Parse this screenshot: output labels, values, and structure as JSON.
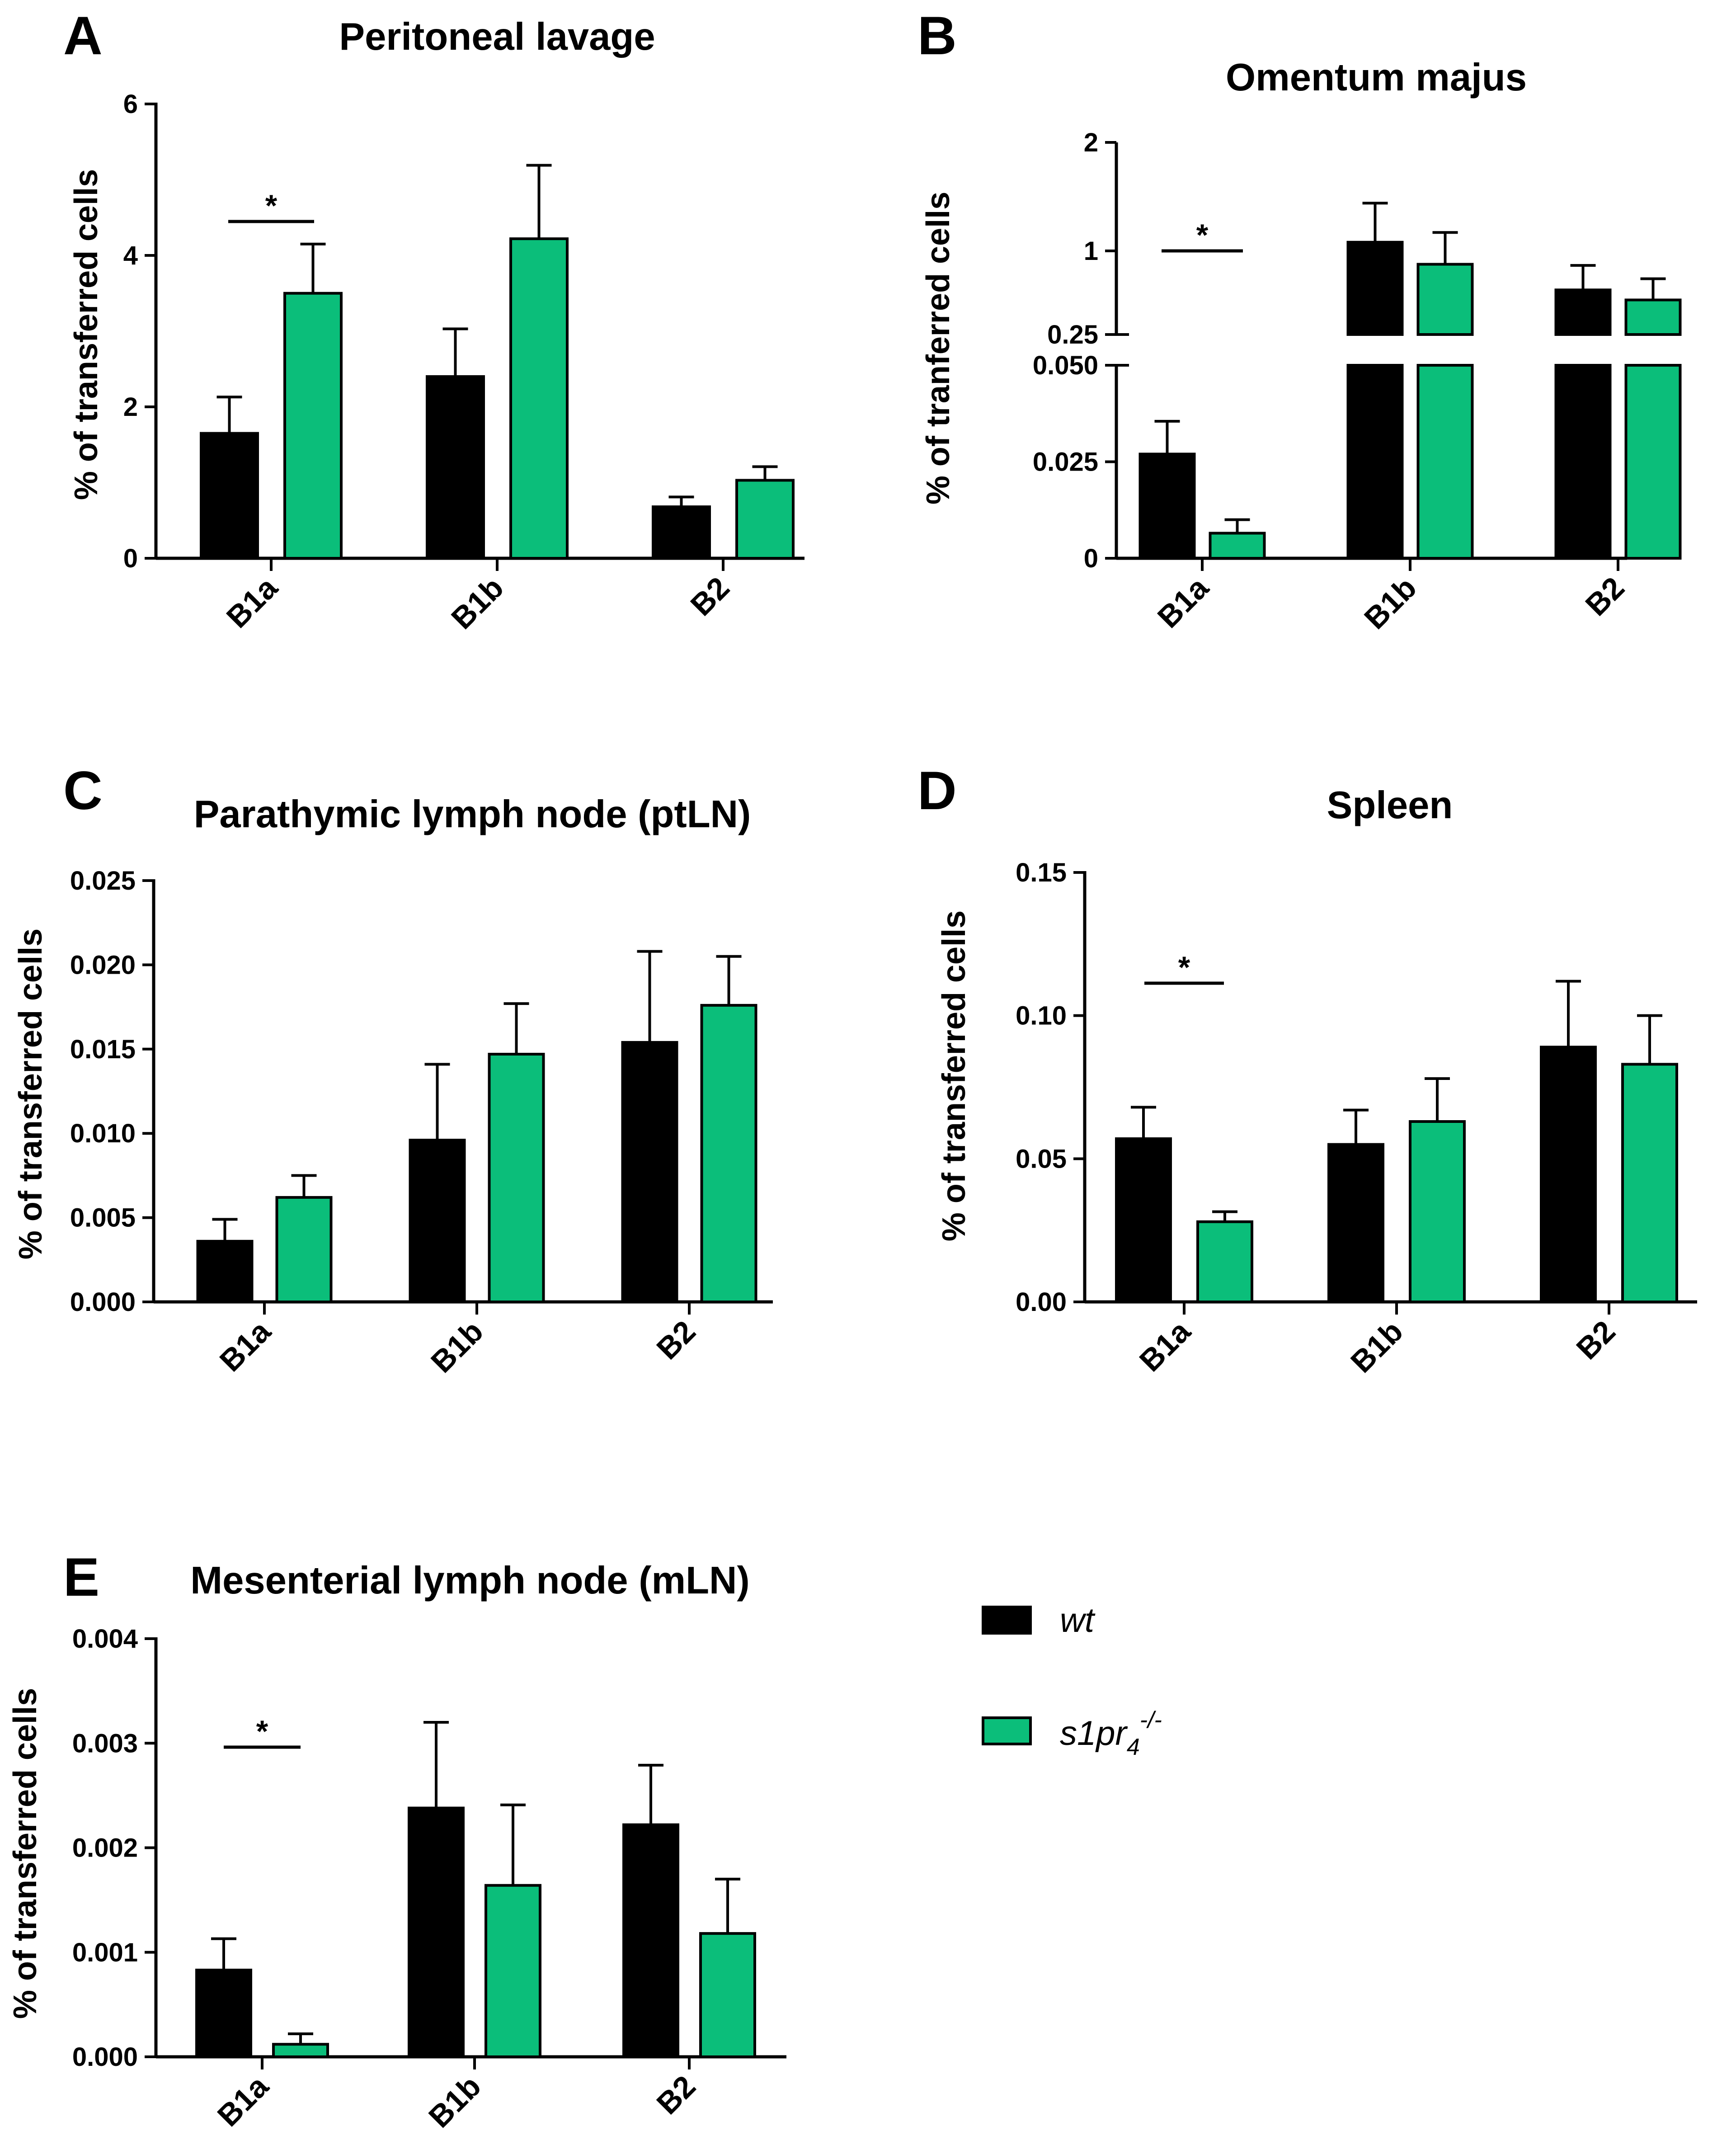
{
  "colors": {
    "wt": "#000000",
    "ko": "#0BBE7A",
    "axis": "#000000"
  },
  "legend": {
    "items": [
      {
        "key": "wt",
        "label": "wt"
      },
      {
        "key": "ko",
        "label_main": "s1pr",
        "label_sub": "4",
        "label_sup": "-/-"
      }
    ]
  },
  "chart_data": [
    {
      "panel": "A",
      "type": "bar",
      "title": "Peritoneal lavage",
      "ylabel": "% of transferred cells",
      "categories": [
        "B1a",
        "B1b",
        "B2"
      ],
      "ylim": [
        0,
        6
      ],
      "yticks": [
        0,
        2,
        4,
        6
      ],
      "ytick_labels": [
        "0",
        "2",
        "4",
        "6"
      ],
      "series": [
        {
          "name": "wt",
          "values": [
            1.65,
            2.4,
            0.68
          ],
          "errors": [
            0.48,
            0.63,
            0.13
          ]
        },
        {
          "name": "s1pr4-/-",
          "values": [
            3.5,
            4.22,
            1.03
          ],
          "errors": [
            0.65,
            0.97,
            0.18
          ]
        }
      ],
      "significance": [
        {
          "category": "B1a",
          "label": "*"
        }
      ]
    },
    {
      "panel": "B",
      "type": "bar",
      "title": "Omentum majus",
      "ylabel": "% of tranferred cells",
      "categories": [
        "B1a",
        "B1b",
        "B2"
      ],
      "broken_axis": true,
      "lower": {
        "ylim": [
          0,
          0.05
        ],
        "yticks": [
          0,
          0.025,
          0.05
        ],
        "ytick_labels": [
          "0",
          "0.025",
          "0.050"
        ]
      },
      "upper": {
        "ylim": [
          0.25,
          2
        ],
        "yticks": [
          0.25,
          1,
          2
        ],
        "ytick_labels": [
          "0.25",
          "1",
          "2"
        ]
      },
      "series": [
        {
          "name": "wt",
          "values": [
            0.027,
            1.08,
            0.65
          ],
          "errors": [
            0.0085,
            0.36,
            0.22
          ]
        },
        {
          "name": "s1pr4-/-",
          "values": [
            0.0065,
            0.88,
            0.56
          ],
          "errors": [
            0.0035,
            0.29,
            0.19
          ]
        }
      ],
      "significance": [
        {
          "category": "B1a",
          "label": "*"
        }
      ]
    },
    {
      "panel": "C",
      "type": "bar",
      "title": "Parathymic lymph node (ptLN)",
      "ylabel": "% of transferred cells",
      "categories": [
        "B1a",
        "B1b",
        "B2"
      ],
      "ylim": [
        0,
        0.025
      ],
      "yticks": [
        0,
        0.005,
        0.01,
        0.015,
        0.02,
        0.025
      ],
      "ytick_labels": [
        "0.000",
        "0.005",
        "0.010",
        "0.015",
        "0.020",
        "0.025"
      ],
      "series": [
        {
          "name": "wt",
          "values": [
            0.0036,
            0.0096,
            0.0154
          ],
          "errors": [
            0.0013,
            0.0045,
            0.0054
          ]
        },
        {
          "name": "s1pr4-/-",
          "values": [
            0.0062,
            0.0147,
            0.0176
          ],
          "errors": [
            0.0013,
            0.003,
            0.0029
          ]
        }
      ],
      "significance": []
    },
    {
      "panel": "D",
      "type": "bar",
      "title": "Spleen",
      "ylabel": "% of transferred cells",
      "categories": [
        "B1a",
        "B1b",
        "B2"
      ],
      "ylim": [
        0,
        0.15
      ],
      "yticks": [
        0,
        0.05,
        0.1,
        0.15
      ],
      "ytick_labels": [
        "0.00",
        "0.05",
        "0.10",
        "0.15"
      ],
      "series": [
        {
          "name": "wt",
          "values": [
            0.057,
            0.055,
            0.089
          ],
          "errors": [
            0.011,
            0.012,
            0.023
          ]
        },
        {
          "name": "s1pr4-/-",
          "values": [
            0.028,
            0.063,
            0.083
          ],
          "errors": [
            0.0035,
            0.015,
            0.017
          ]
        }
      ],
      "significance": [
        {
          "category": "B1a",
          "label": "*"
        }
      ]
    },
    {
      "panel": "E",
      "type": "bar",
      "title": "Mesenterial lymph node (mLN)",
      "ylabel": "% of transferred cells",
      "categories": [
        "B1a",
        "B1b",
        "B2"
      ],
      "ylim": [
        0,
        0.004
      ],
      "yticks": [
        0,
        0.001,
        0.002,
        0.003,
        0.004
      ],
      "ytick_labels": [
        "0.000",
        "0.001",
        "0.002",
        "0.003",
        "0.004"
      ],
      "series": [
        {
          "name": "wt",
          "values": [
            0.00083,
            0.00238,
            0.00222
          ],
          "errors": [
            0.0003,
            0.00082,
            0.00057
          ]
        },
        {
          "name": "s1pr4-/-",
          "values": [
            0.00012,
            0.00164,
            0.00118
          ],
          "errors": [
            0.0001,
            0.00077,
            0.00052
          ]
        }
      ],
      "significance": [
        {
          "category": "B1a",
          "label": "*"
        }
      ]
    }
  ]
}
